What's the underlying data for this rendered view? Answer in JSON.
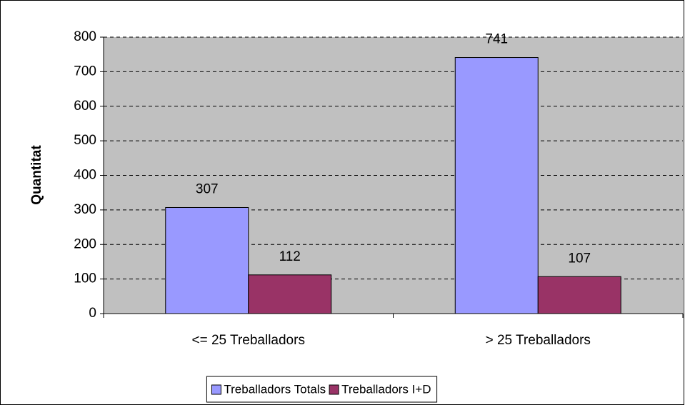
{
  "chart_data": {
    "type": "bar",
    "y_axis_label": "Quantitat",
    "categories": [
      "<= 25 Treballadors",
      "> 25 Treballadors"
    ],
    "series": [
      {
        "name": "Treballadors Totals",
        "color": "#9999ff",
        "values": [
          307,
          741
        ]
      },
      {
        "name": "Treballadors I+D",
        "color": "#993366",
        "values": [
          112,
          107
        ]
      }
    ],
    "ylim": [
      0,
      800
    ],
    "yticks": [
      0,
      100,
      200,
      300,
      400,
      500,
      600,
      700,
      800
    ],
    "grid": true,
    "plot_background": "#c0c0c0",
    "legend": "bottom"
  }
}
